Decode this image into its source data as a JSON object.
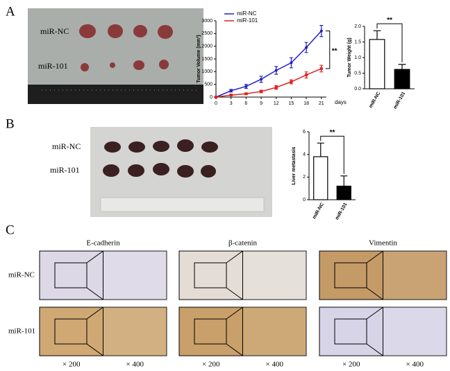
{
  "figure": {
    "panel_labels": [
      "A",
      "B",
      "C"
    ],
    "photo_a_rows": [
      "miR-NC",
      "miR-101"
    ],
    "photo_b_rows": [
      "miR-NC",
      "miR-101"
    ],
    "ihc": {
      "columns": [
        "E-cadherin",
        "β-catenin",
        "Vimentin"
      ],
      "rows": [
        "miR-NC",
        "miR-101"
      ],
      "magnifications": [
        "× 200",
        "× 400"
      ]
    }
  },
  "chart_data": [
    {
      "type": "line",
      "ylabel": "Tumor Volume (mm³)",
      "xlabel": "days",
      "annotation": "**",
      "x": [
        0,
        3,
        6,
        9,
        12,
        15,
        18,
        21
      ],
      "series": [
        {
          "name": "miR-NC",
          "color": "#1f1fc8",
          "values": [
            0,
            250,
            420,
            700,
            1050,
            1350,
            1950,
            2600
          ],
          "errors": [
            0,
            50,
            80,
            120,
            150,
            200,
            200,
            220
          ]
        },
        {
          "name": "miR-101",
          "color": "#e02020",
          "values": [
            0,
            80,
            130,
            220,
            380,
            600,
            870,
            1120
          ],
          "errors": [
            0,
            20,
            30,
            50,
            70,
            80,
            120,
            130
          ]
        }
      ],
      "xlim": [
        0,
        22
      ],
      "xticks": [
        0,
        3,
        6,
        9,
        12,
        15,
        18,
        21
      ],
      "ylim": [
        0,
        3000
      ],
      "yticks": [
        0,
        500,
        1000,
        1500,
        2000,
        2500,
        3000
      ],
      "legend": "top-left"
    },
    {
      "type": "bar",
      "ylabel": "Tumor Weight (g)",
      "annotation": "**",
      "categories": [
        "miR-NC",
        "miR-101"
      ],
      "values": [
        1.58,
        0.62
      ],
      "errors": [
        0.28,
        0.16
      ],
      "colors": [
        "#ffffff",
        "#000000"
      ],
      "ylim": [
        0,
        2
      ],
      "yticks": [
        {
          "value": 0,
          "label": "0.0"
        },
        0.5,
        {
          "value": 1,
          "label": "1.0"
        },
        1.5,
        {
          "value": 2,
          "label": "2.0"
        }
      ]
    },
    {
      "type": "bar",
      "ylabel": "Liver metastasis",
      "annotation": "**",
      "categories": [
        "miR-NC",
        "miR-101"
      ],
      "values": [
        3.8,
        1.2
      ],
      "errors": [
        1.2,
        0.9
      ],
      "colors": [
        "#ffffff",
        "#000000"
      ],
      "ylim": [
        0,
        6
      ],
      "yticks": [
        0,
        2,
        4,
        6
      ]
    }
  ]
}
